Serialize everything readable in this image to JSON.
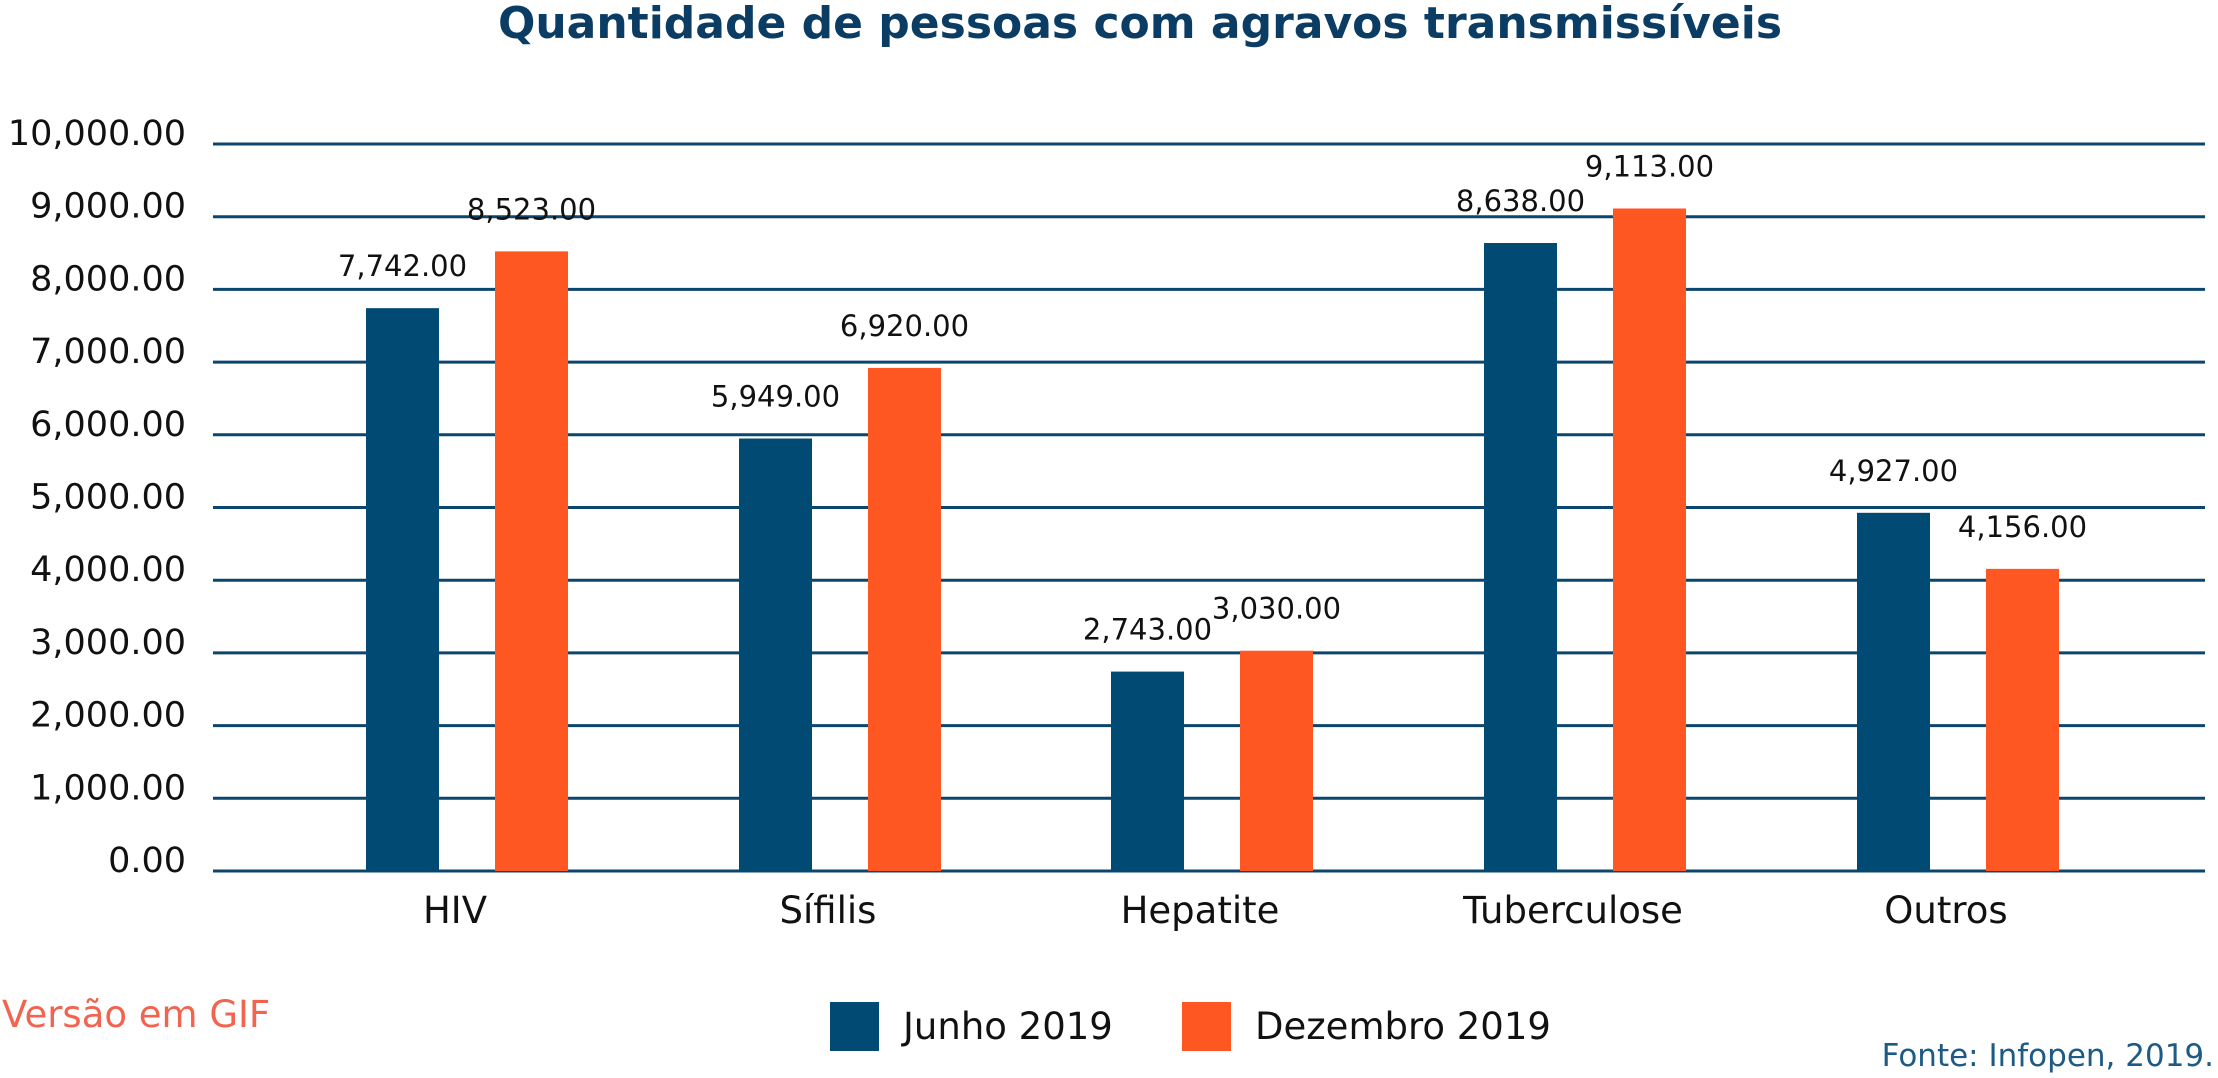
{
  "colors": {
    "junho": "#004a74",
    "dezembro": "#ff5722",
    "grid": "#0b466e",
    "title": "#0b3d64",
    "gif_note": "#f16450",
    "source": "#1d5a84"
  },
  "chart_data": {
    "type": "bar",
    "title": "Quantidade de pessoas com agravos transmissíveis",
    "categories": [
      "HIV",
      "Sífilis",
      "Hepatite",
      "Tuberculose",
      "Outros"
    ],
    "series": [
      {
        "name": "Junho 2019",
        "values": [
          7742,
          5949,
          2743,
          8638,
          4927
        ],
        "labels": [
          "7,742.00",
          "5,949.00",
          "2,743.00",
          "8,638.00",
          "4,927.00"
        ]
      },
      {
        "name": "Dezembro 2019",
        "values": [
          8523,
          6920,
          3030,
          9113,
          4156
        ],
        "labels": [
          "8,523.00",
          "6,920.00",
          "3,030.00",
          "9,113.00",
          "4,156.00"
        ]
      }
    ],
    "ylim": [
      0,
      10000
    ],
    "yticks": [
      0,
      1000,
      2000,
      3000,
      4000,
      5000,
      6000,
      7000,
      8000,
      9000,
      10000
    ],
    "ytick_labels": [
      "0.00",
      "1,000.00",
      "2,000.00",
      "3,000.00",
      "4,000.00",
      "5,000.00",
      "6,000.00",
      "7,000.00",
      "8,000.00",
      "9,000.00",
      "10,000.00"
    ],
    "grid": true,
    "legend_position": "bottom-center"
  },
  "notes": {
    "gif_version": "Versão em GIF",
    "source": "Fonte: Infopen, 2019."
  }
}
